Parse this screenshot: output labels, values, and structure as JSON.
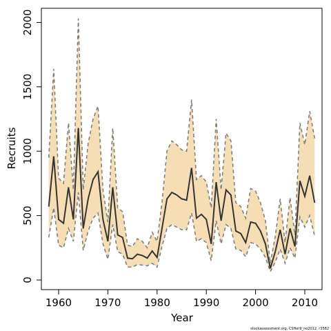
{
  "chart_data": {
    "type": "line",
    "title": "",
    "xlabel": "Year",
    "ylabel": "Recruits",
    "xlim": [
      1956.5,
      2013.5
    ],
    "ylim": [
      -75,
      2110
    ],
    "x_ticks": [
      1960,
      1970,
      1980,
      1990,
      2000,
      2010
    ],
    "x_tick_labels": [
      "1960",
      "1970",
      "1980",
      "1990",
      "2000",
      "2010"
    ],
    "y_ticks": [
      0,
      500,
      1000,
      1500,
      2000
    ],
    "y_tick_labels": [
      "0",
      "500",
      "1000",
      "1500",
      "2000"
    ],
    "grid": false,
    "legend": "none",
    "band_color": "#f5deb3",
    "bound_color": "#7f7f7f",
    "line_color": "#333333",
    "x": [
      1958,
      1959,
      1960,
      1961,
      1962,
      1963,
      1964,
      1965,
      1966,
      1967,
      1968,
      1969,
      1970,
      1971,
      1972,
      1973,
      1974,
      1975,
      1976,
      1977,
      1978,
      1979,
      1980,
      1981,
      1982,
      1983,
      1984,
      1985,
      1986,
      1987,
      1988,
      1989,
      1990,
      1991,
      1992,
      1993,
      1994,
      1995,
      1996,
      1997,
      1998,
      1999,
      2000,
      2001,
      2002,
      2003,
      2004,
      2005,
      2006,
      2007,
      2008,
      2009,
      2010,
      2011,
      2012
    ],
    "series": [
      {
        "role": "upper",
        "values": [
          950,
          1640,
          790,
          750,
          1220,
          700,
          2030,
          700,
          1060,
          1250,
          1350,
          700,
          450,
          1180,
          560,
          530,
          270,
          260,
          320,
          300,
          250,
          370,
          300,
          600,
          1000,
          1080,
          1050,
          1010,
          1000,
          1400,
          780,
          810,
          760,
          560,
          1250,
          700,
          1140,
          1080,
          600,
          570,
          480,
          710,
          690,
          600,
          460,
          130,
          340,
          630,
          290,
          640,
          350,
          1220,
          1050,
          1310,
          1100
        ]
      },
      {
        "role": "estimate",
        "values": [
          570,
          960,
          470,
          440,
          720,
          470,
          1180,
          400,
          630,
          780,
          840,
          470,
          300,
          720,
          350,
          330,
          170,
          165,
          200,
          190,
          170,
          225,
          175,
          400,
          630,
          680,
          660,
          630,
          620,
          870,
          480,
          510,
          470,
          280,
          760,
          460,
          700,
          660,
          380,
          360,
          290,
          450,
          440,
          380,
          280,
          90,
          220,
          390,
          200,
          400,
          260,
          770,
          650,
          810,
          600
        ]
      },
      {
        "role": "lower",
        "values": [
          330,
          560,
          270,
          250,
          400,
          300,
          680,
          230,
          380,
          480,
          520,
          280,
          160,
          430,
          220,
          200,
          100,
          100,
          120,
          115,
          110,
          130,
          100,
          260,
          400,
          430,
          410,
          390,
          390,
          520,
          300,
          320,
          290,
          150,
          460,
          280,
          430,
          400,
          240,
          230,
          180,
          290,
          280,
          240,
          175,
          65,
          140,
          240,
          130,
          250,
          170,
          490,
          410,
          500,
          340
        ]
      }
    ]
  },
  "credit_text": "stockassessment.org, CSHer9_no2012, r3582"
}
